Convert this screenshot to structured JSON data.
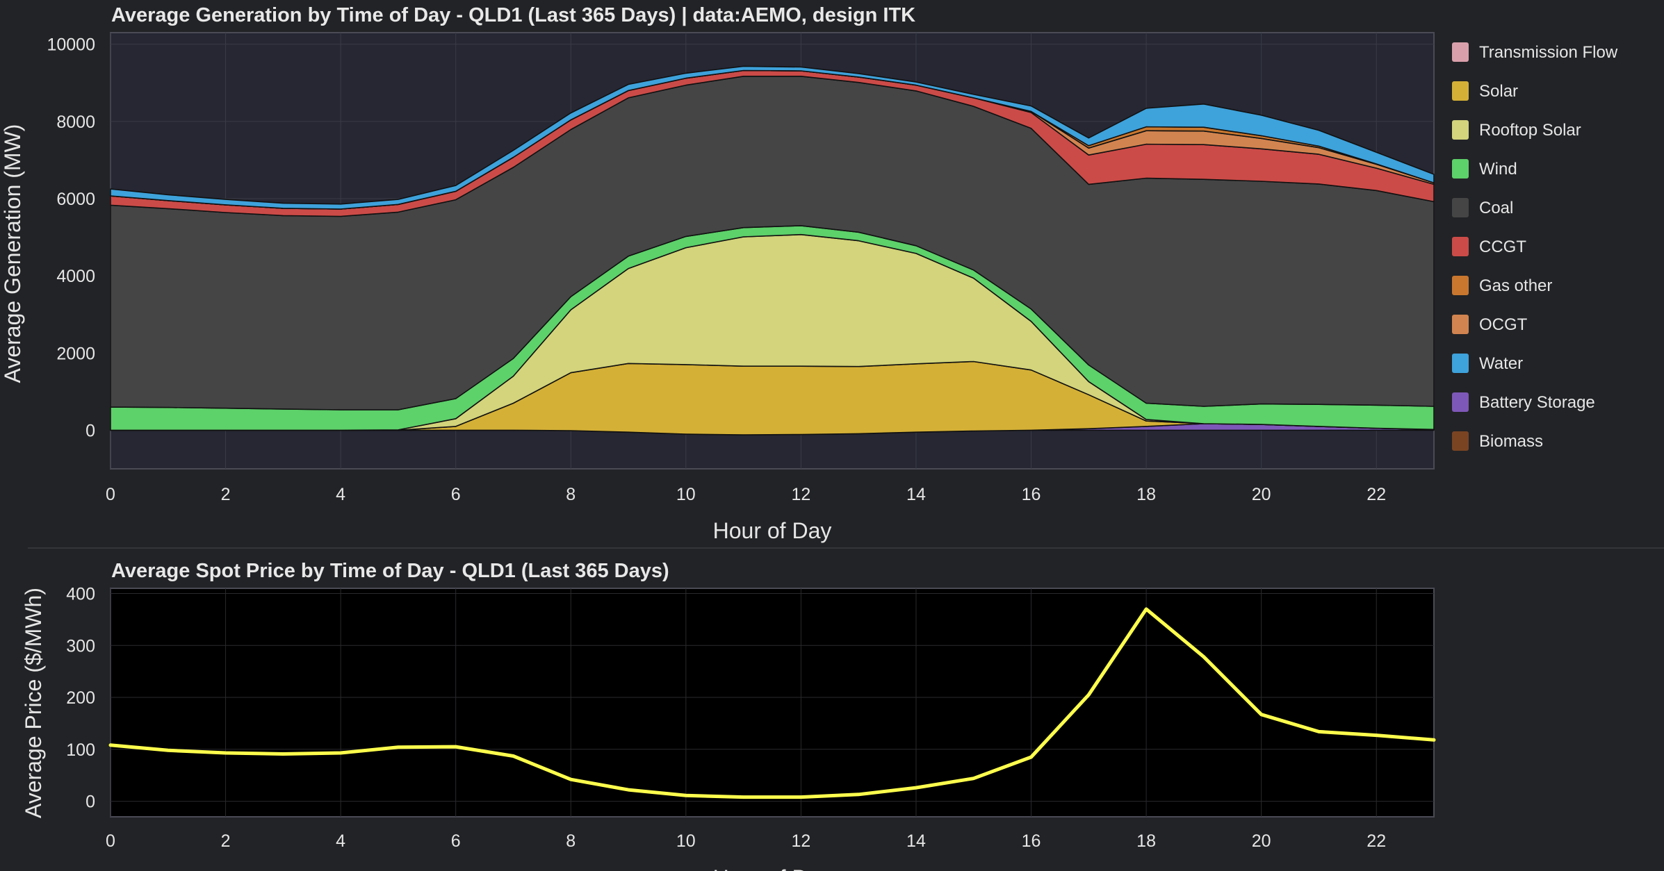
{
  "colors": {
    "page_bg": "#222326",
    "gen_plot_bg": "#262733",
    "price_plot_bg": "#000000",
    "grid": "#3a3b46",
    "price_line": "#ffff4d",
    "divider": "#34353a",
    "transmission_flow": "#d9a0ab",
    "solar": "#d4b036",
    "rooftop_solar": "#d3d47b",
    "wind": "#5dd16a",
    "coal": "#454546",
    "ccgt": "#cb4b48",
    "gas_other": "#c9772f",
    "ocgt": "#d28450",
    "water": "#3ea2db",
    "battery_storage": "#7e58b8",
    "biomass": "#7a4422"
  },
  "chart_data": [
    {
      "type": "area",
      "stacked": true,
      "title": "Average Generation by Time of Day - QLD1 (Last 365 Days) | data:AEMO, design ITK",
      "xlabel": "Hour of Day",
      "ylabel": "Average Generation (MW)",
      "x": [
        0,
        1,
        2,
        3,
        4,
        5,
        6,
        7,
        8,
        9,
        10,
        11,
        12,
        13,
        14,
        15,
        16,
        17,
        18,
        19,
        20,
        21,
        22,
        23
      ],
      "xlim": [
        0,
        23
      ],
      "ylim": [
        -1000,
        10300
      ],
      "xticks": [
        "0",
        "2",
        "4",
        "6",
        "8",
        "10",
        "12",
        "14",
        "16",
        "18",
        "20",
        "22"
      ],
      "yticks": [
        "0",
        "2000",
        "4000",
        "6000",
        "8000",
        "10000"
      ],
      "grid": true,
      "legend": "right",
      "legend_entries": [
        "Transmission Flow",
        "Solar",
        "Rooftop Solar",
        "Wind",
        "Coal",
        "CCGT",
        "Gas other",
        "OCGT",
        "Water",
        "Battery Storage",
        "Biomass"
      ],
      "series": [
        {
          "name": "Battery Storage",
          "color_key": "battery_storage",
          "values": [
            0,
            0,
            0,
            0,
            0,
            0,
            0,
            0,
            -10,
            -50,
            -100,
            -120,
            -110,
            -90,
            -50,
            -20,
            0,
            40,
            100,
            170,
            150,
            100,
            50,
            20
          ]
        },
        {
          "name": "Solar",
          "color_key": "solar",
          "values": [
            0,
            0,
            0,
            0,
            0,
            0,
            100,
            700,
            1500,
            1780,
            1800,
            1780,
            1770,
            1740,
            1770,
            1800,
            1560,
            880,
            140,
            0,
            0,
            0,
            0,
            0
          ]
        },
        {
          "name": "Rooftop Solar",
          "color_key": "rooftop_solar",
          "values": [
            0,
            0,
            0,
            0,
            0,
            10,
            200,
            700,
            1630,
            2460,
            3030,
            3350,
            3410,
            3260,
            2860,
            2160,
            1260,
            340,
            40,
            0,
            0,
            0,
            0,
            0
          ]
        },
        {
          "name": "Wind",
          "color_key": "wind",
          "values": [
            600,
            590,
            570,
            550,
            530,
            520,
            520,
            460,
            340,
            320,
            290,
            240,
            230,
            220,
            200,
            210,
            320,
            430,
            420,
            450,
            530,
            570,
            600,
            600
          ]
        },
        {
          "name": "Coal",
          "color_key": "coal",
          "values": [
            5230,
            5150,
            5070,
            5010,
            5010,
            5120,
            5150,
            4950,
            4330,
            4100,
            3920,
            3920,
            3870,
            3880,
            4010,
            4240,
            4680,
            4680,
            5830,
            5880,
            5770,
            5710,
            5560,
            5300
          ]
        },
        {
          "name": "CCGT",
          "color_key": "ccgt",
          "values": [
            240,
            210,
            200,
            190,
            190,
            200,
            220,
            260,
            250,
            190,
            180,
            150,
            140,
            140,
            150,
            220,
            410,
            760,
            880,
            900,
            840,
            770,
            580,
            450
          ]
        },
        {
          "name": "OCGT",
          "color_key": "ocgt",
          "values": [
            0,
            0,
            0,
            0,
            0,
            0,
            0,
            0,
            0,
            0,
            0,
            0,
            0,
            0,
            0,
            0,
            30,
            180,
            350,
            350,
            270,
            170,
            100,
            40
          ]
        },
        {
          "name": "Gas other",
          "color_key": "gas_other",
          "values": [
            0,
            0,
            0,
            0,
            0,
            0,
            0,
            0,
            0,
            0,
            0,
            0,
            0,
            0,
            0,
            0,
            0,
            60,
            100,
            100,
            70,
            40,
            10,
            0
          ]
        },
        {
          "name": "Water",
          "color_key": "water",
          "values": [
            180,
            150,
            140,
            130,
            130,
            130,
            150,
            180,
            180,
            160,
            130,
            110,
            100,
            90,
            80,
            90,
            140,
            200,
            480,
            600,
            530,
            410,
            300,
            220
          ]
        },
        {
          "name": "Transmission Flow",
          "color_key": "transmission_flow",
          "values": [
            0,
            0,
            0,
            0,
            0,
            0,
            0,
            0,
            0,
            0,
            0,
            0,
            0,
            0,
            0,
            0,
            0,
            0,
            0,
            0,
            0,
            0,
            0,
            0
          ]
        },
        {
          "name": "Biomass",
          "color_key": "biomass",
          "values": [
            0,
            0,
            0,
            0,
            0,
            0,
            0,
            0,
            0,
            0,
            0,
            0,
            0,
            0,
            0,
            0,
            0,
            0,
            0,
            0,
            0,
            0,
            0,
            0
          ]
        }
      ]
    },
    {
      "type": "line",
      "title": "Average Spot Price by Time of Day - QLD1 (Last 365 Days)",
      "xlabel": "Hour of Day",
      "ylabel": "Average Price ($/MWh)",
      "x": [
        0,
        1,
        2,
        3,
        4,
        5,
        6,
        7,
        8,
        9,
        10,
        11,
        12,
        13,
        14,
        15,
        16,
        17,
        18,
        19,
        20,
        21,
        22,
        23
      ],
      "xlim": [
        0,
        23
      ],
      "ylim": [
        -30,
        410
      ],
      "xticks": [
        "0",
        "2",
        "4",
        "6",
        "8",
        "10",
        "12",
        "14",
        "16",
        "18",
        "20",
        "22"
      ],
      "yticks": [
        "0",
        "100",
        "200",
        "300",
        "400"
      ],
      "grid": true,
      "series": [
        {
          "color_key": "price_line",
          "values": [
            108,
            98,
            93,
            91,
            93,
            104,
            105,
            87,
            42,
            22,
            11,
            8,
            8,
            13,
            26,
            44,
            85,
            205,
            370,
            278,
            167,
            134,
            127,
            118
          ]
        }
      ]
    }
  ]
}
